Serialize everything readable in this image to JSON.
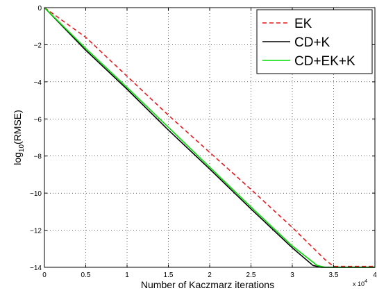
{
  "chart_data": {
    "type": "line",
    "title": "",
    "xlabel": "Number of Kaczmarz iterations",
    "ylabel_main": "log",
    "ylabel_sub": "10",
    "ylabel_rest": "(RMSE)",
    "x_multiplier_base": "x 10",
    "x_multiplier_exp": "4",
    "xlim": [
      0,
      4
    ],
    "ylim": [
      -14,
      0
    ],
    "x_ticks": [
      0,
      0.5,
      1,
      1.5,
      2,
      2.5,
      3,
      3.5,
      4
    ],
    "x_tick_labels": [
      "0",
      "0.5",
      "1",
      "1.5",
      "2",
      "2.5",
      "3",
      "3.5",
      "4"
    ],
    "y_ticks": [
      0,
      -2,
      -4,
      -6,
      -8,
      -10,
      -12,
      -14
    ],
    "y_tick_labels": [
      "0",
      "−2",
      "−4",
      "−6",
      "−8",
      "−10",
      "−12",
      "−14"
    ],
    "grid": true,
    "legend_position": "top-right",
    "series": [
      {
        "name": "EK",
        "color": "#e41a1c",
        "style": "dashed",
        "x": [
          0,
          0.5,
          1,
          1.5,
          2,
          2.5,
          3,
          3.4,
          3.5,
          4
        ],
        "y": [
          0,
          -1.6,
          -3.7,
          -5.8,
          -7.8,
          -9.8,
          -11.85,
          -13.6,
          -13.95,
          -13.95
        ]
      },
      {
        "name": "CD+K",
        "color": "#000000",
        "style": "solid",
        "x": [
          0,
          0.5,
          1,
          1.5,
          2,
          2.5,
          3,
          3.25,
          3.35,
          4
        ],
        "y": [
          0,
          -2.3,
          -4.4,
          -6.6,
          -8.7,
          -10.85,
          -12.95,
          -13.9,
          -14.0,
          -14.0
        ]
      },
      {
        "name": "CD+EK+K",
        "color": "#00dd00",
        "style": "solid",
        "x": [
          0,
          0.5,
          1,
          1.5,
          2,
          2.5,
          3,
          3.3,
          3.4,
          4
        ],
        "y": [
          0,
          -2.2,
          -4.3,
          -6.45,
          -8.6,
          -10.75,
          -12.85,
          -13.9,
          -14.0,
          -14.0
        ]
      }
    ]
  }
}
